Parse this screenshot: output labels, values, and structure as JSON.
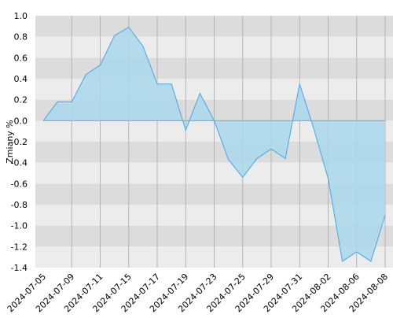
{
  "chart_data": {
    "type": "area",
    "y_label": "Zmiany %",
    "categories": [
      "2024-07-05",
      null,
      "2024-07-09",
      null,
      "2024-07-11",
      null,
      "2024-07-15",
      null,
      "2024-07-17",
      null,
      "2024-07-19",
      null,
      "2024-07-23",
      null,
      "2024-07-25",
      null,
      "2024-07-29",
      null,
      "2024-07-31",
      null,
      "2024-08-02",
      null,
      "2024-08-06",
      null,
      "2024-08-08"
    ],
    "values": [
      0,
      0.18,
      0.18,
      0.44,
      0.53,
      0.81,
      0.89,
      0.71,
      0.35,
      0.35,
      -0.09,
      0.26,
      0,
      -0.37,
      -0.54,
      -0.36,
      -0.27,
      -0.36,
      0.35,
      -0.08,
      -0.55,
      -1.34,
      -1.25,
      -1.34,
      -0.9
    ],
    "color": "#5aaee6",
    "fill": "#a9d8ec",
    "ylim": [
      -1.4,
      1.0
    ],
    "yticks": [
      {
        "value": 1,
        "label": "1.0"
      },
      0.8,
      0.6,
      0.4,
      0.2,
      {
        "value": 0,
        "label": "0.0"
      },
      -0.2,
      -0.4,
      -0.6,
      -0.8,
      {
        "value": -1,
        "label": "-1.0"
      },
      -1.2,
      -1.4
    ],
    "grid": true
  }
}
